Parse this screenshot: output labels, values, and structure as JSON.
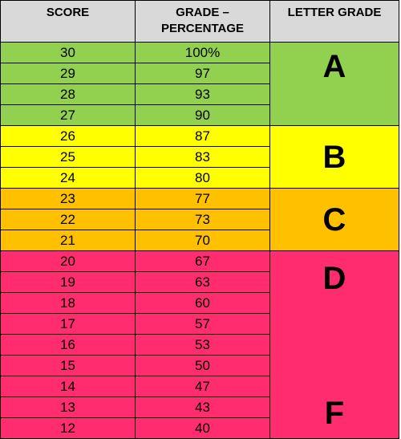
{
  "table": {
    "headers": [
      "SCORE",
      "GRADE – PERCENTAGE",
      "LETTER GRADE"
    ],
    "header_color": "#d9d9d9",
    "bands": [
      {
        "letter": "A",
        "color": "#92d050",
        "rows": [
          [
            "30",
            "100%"
          ],
          [
            "29",
            "97"
          ],
          [
            "28",
            "93"
          ],
          [
            "27",
            "90"
          ]
        ]
      },
      {
        "letter": "B",
        "color": "#ffff00",
        "rows": [
          [
            "26",
            "87"
          ],
          [
            "25",
            "83"
          ],
          [
            "24",
            "80"
          ]
        ]
      },
      {
        "letter": "C",
        "color": "#ffc000",
        "rows": [
          [
            "23",
            "77"
          ],
          [
            "22",
            "73"
          ],
          [
            "21",
            "70"
          ]
        ]
      },
      {
        "letters": [
          "D",
          "F"
        ],
        "color": "#ff2d6f",
        "rows": [
          [
            "20",
            "67"
          ],
          [
            "19",
            "63"
          ],
          [
            "18",
            "60"
          ],
          [
            "17",
            "57"
          ],
          [
            "16",
            "53"
          ],
          [
            "15",
            "50"
          ],
          [
            "14",
            "47"
          ],
          [
            "13",
            "43"
          ],
          [
            "12",
            "40"
          ]
        ]
      }
    ]
  }
}
